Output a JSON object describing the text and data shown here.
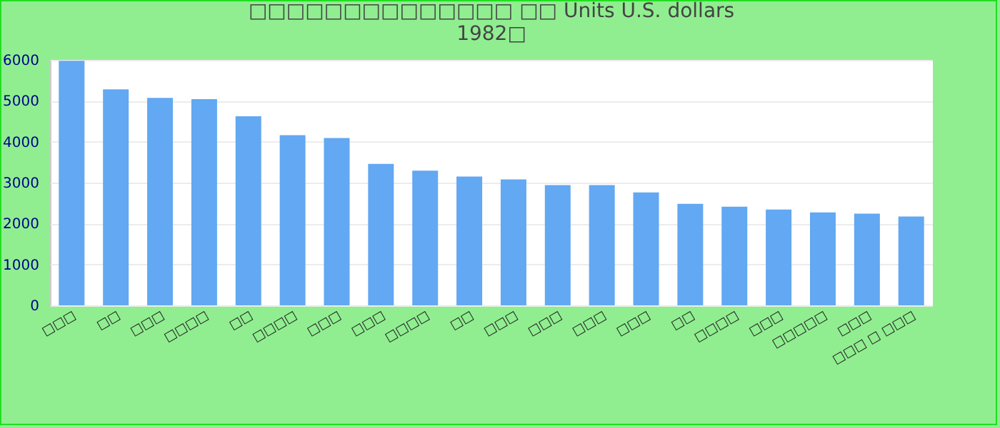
{
  "chart_data": {
    "type": "bar",
    "title": "□□□□□□□□□□□□□□ □□ Units U.S. dollars",
    "subtitle": "1982□",
    "categories": [
      "□□□",
      "□□",
      "□□□",
      "□□□□",
      "□□",
      "□□□□",
      "□□□",
      "□□□",
      "□□□□",
      "□□",
      "□□□",
      "□□□",
      "□□□",
      "□□□",
      "□□",
      "□□□□",
      "□□□",
      "□□□□□",
      "□□□",
      "□□□ □ □□□"
    ],
    "values": [
      5980,
      5280,
      5070,
      5040,
      4620,
      4160,
      4090,
      3460,
      3290,
      3150,
      3080,
      2940,
      2940,
      2760,
      2480,
      2410,
      2340,
      2270,
      2240,
      2170
    ],
    "color": "#62a8f2",
    "ylim": [
      0,
      6000
    ],
    "yticks": [
      0,
      1000,
      2000,
      3000,
      4000,
      5000,
      6000
    ],
    "grid": "y"
  }
}
